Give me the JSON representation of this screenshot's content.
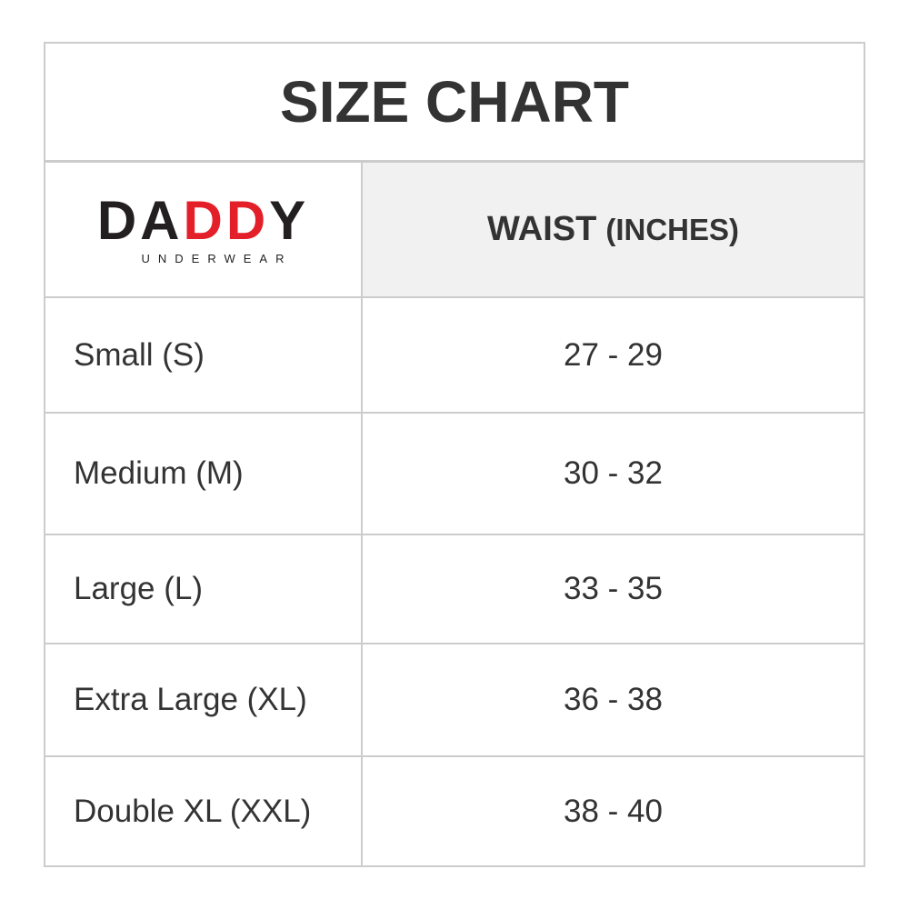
{
  "title": "SIZE CHART",
  "logo": {
    "part1": "DA",
    "part2": "DD",
    "part3": "Y",
    "subtitle": "UNDERWEAR",
    "accent_color": "#e3202a"
  },
  "header": {
    "col2_main": "WAIST",
    "col2_unit": "(INCHES)"
  },
  "rows": [
    {
      "size": "Small (S)",
      "waist": "27 - 29"
    },
    {
      "size": "Medium (M)",
      "waist": "30 - 32"
    },
    {
      "size": "Large (L)",
      "waist": "33 - 35"
    },
    {
      "size": "Extra Large (XL)",
      "waist": "36 - 38"
    },
    {
      "size": "Double XL (XXL)",
      "waist": "38 - 40"
    }
  ]
}
